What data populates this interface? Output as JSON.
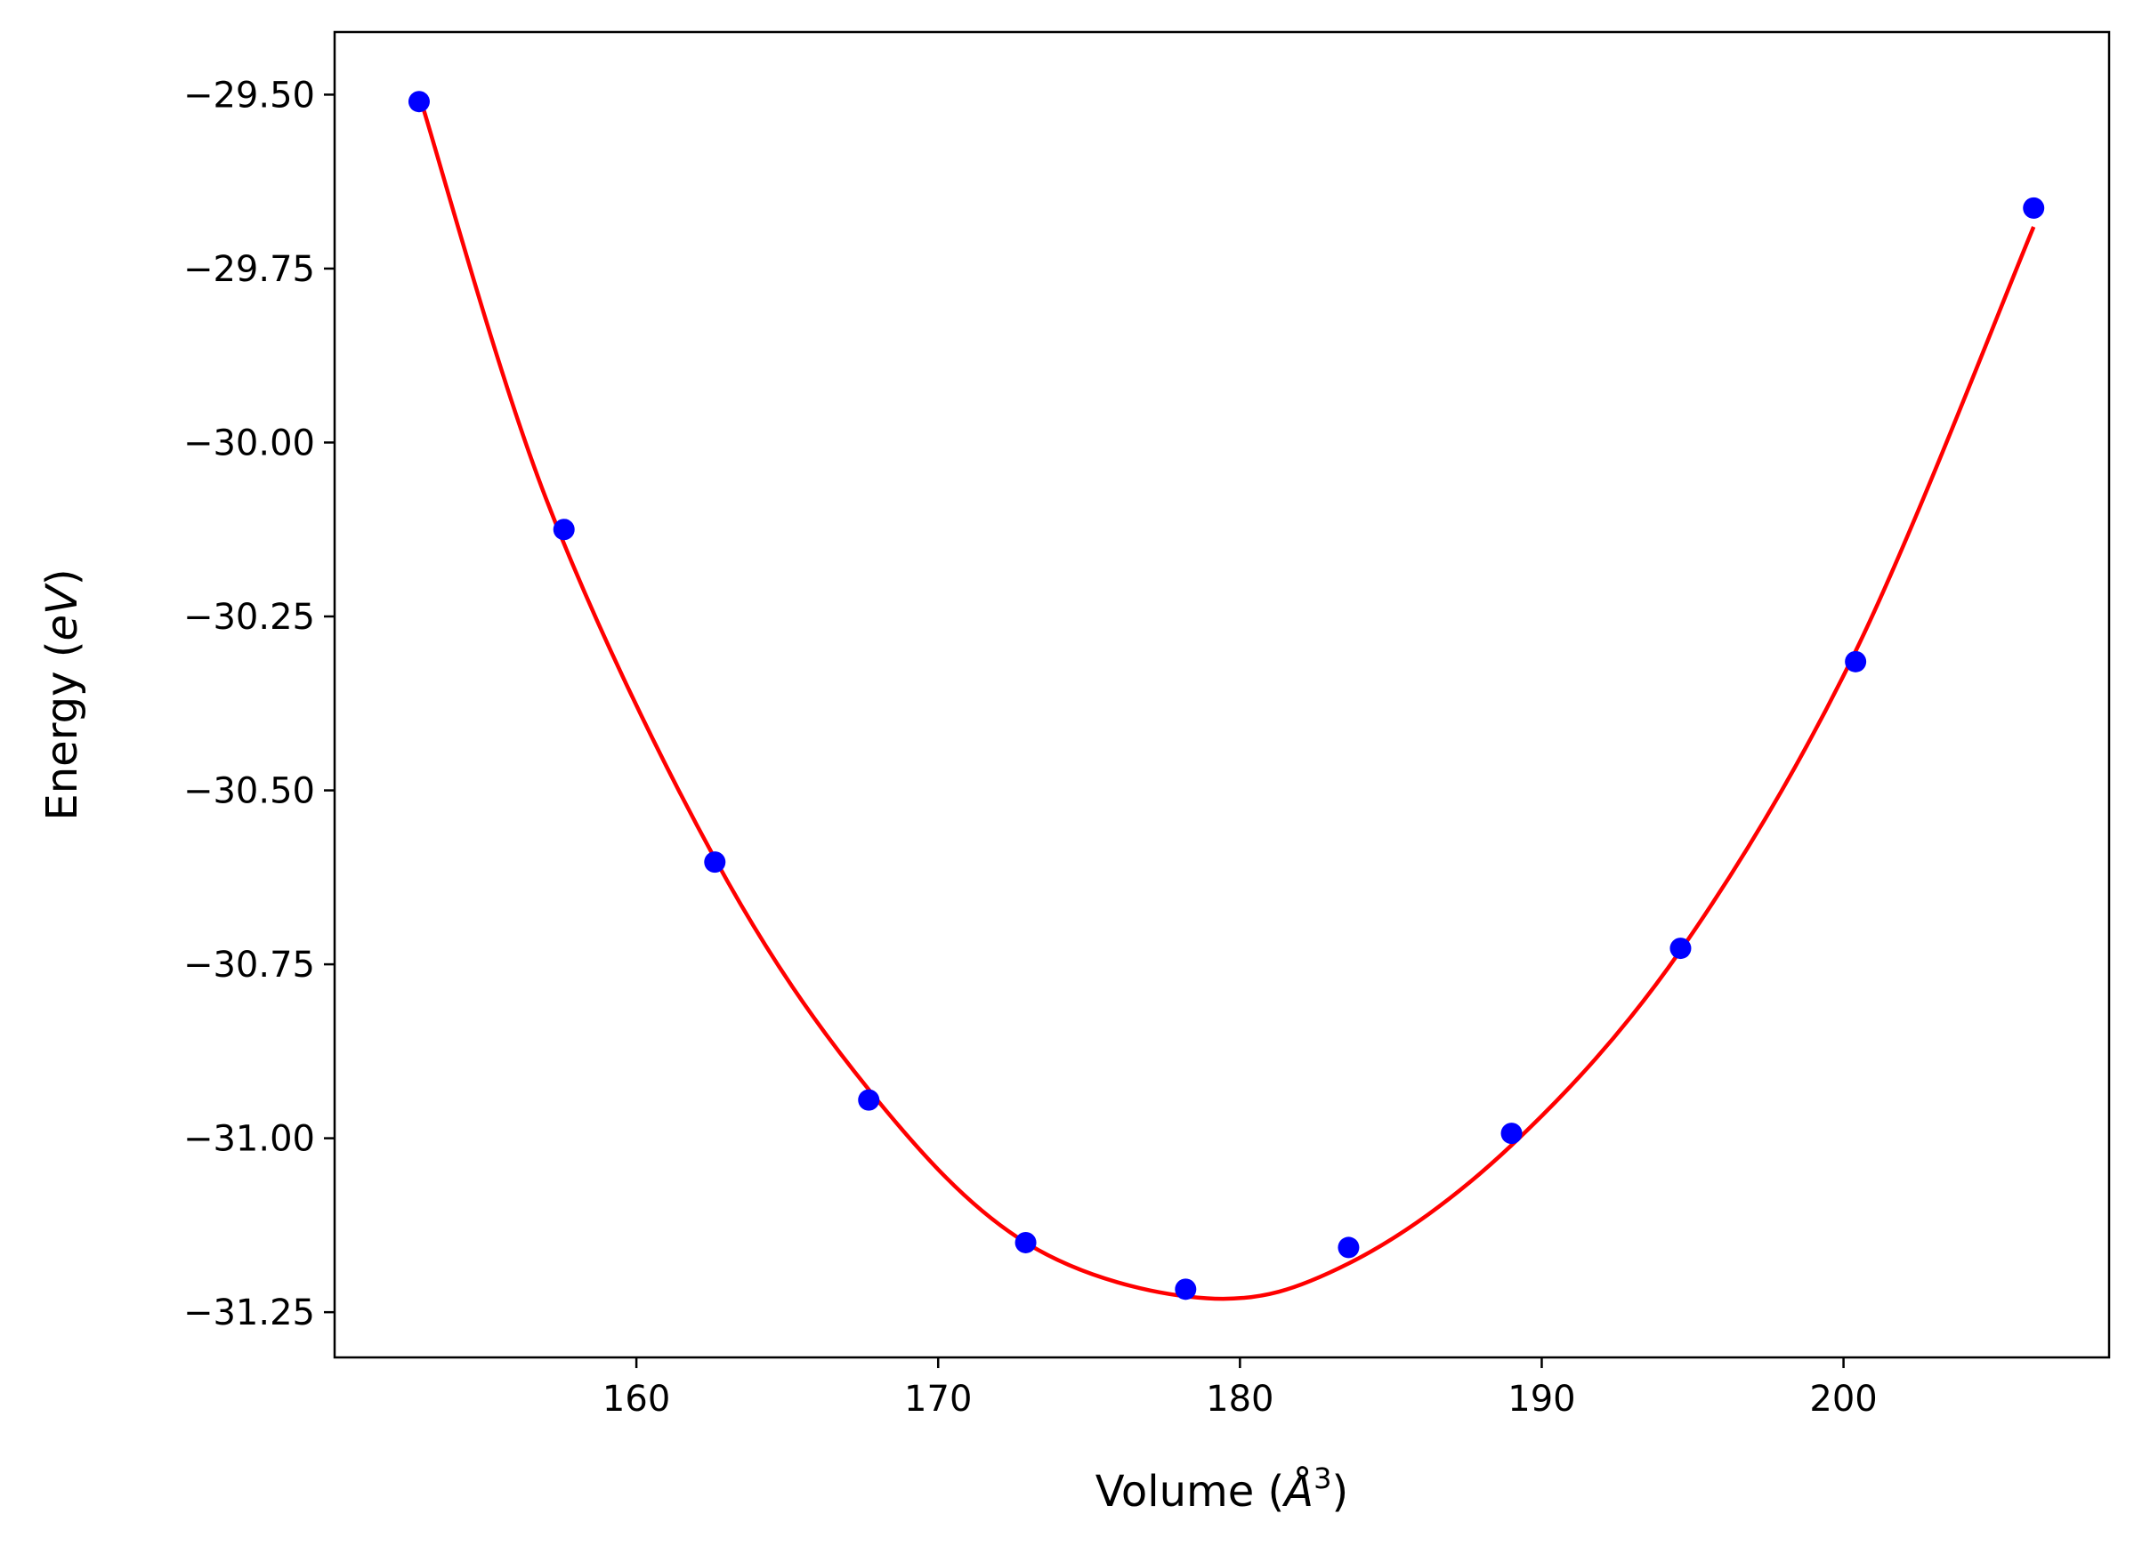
{
  "chart_data": {
    "type": "scatter",
    "title": "",
    "xlabel": "Volume (",
    "xlabel_symbol": "Å",
    "xlabel_exponent": "3",
    "xlabel_close": ")",
    "ylabel": "Energy (",
    "ylabel_unit": "eV",
    "ylabel_close": ")",
    "xlim": [
      150.0,
      208.8
    ],
    "ylim": [
      -31.315,
      -29.41
    ],
    "x_ticks": [
      160,
      170,
      180,
      190,
      200
    ],
    "x_tick_labels": [
      "160",
      "170",
      "180",
      "190",
      "200"
    ],
    "y_ticks": [
      -29.5,
      -29.75,
      -30.0,
      -30.25,
      -30.5,
      -30.75,
      -31.0,
      -31.25
    ],
    "y_tick_labels": [
      "−29.50",
      "−29.75",
      "−30.00",
      "−30.25",
      "−30.50",
      "−30.75",
      "−31.00",
      "−31.25"
    ],
    "grid": false,
    "colors": {
      "points": "#0000ff",
      "fit": "#ff0000"
    },
    "series": [
      {
        "name": "data",
        "kind": "scatter",
        "x": [
          152.8,
          157.6,
          162.6,
          167.7,
          172.9,
          178.2,
          183.6,
          189.0,
          194.6,
          200.4,
          206.3
        ],
        "y": [
          -29.51,
          -30.125,
          -30.603,
          -30.945,
          -31.15,
          -31.217,
          -31.157,
          -30.993,
          -30.727,
          -30.315,
          -29.663
        ]
      },
      {
        "name": "fit",
        "kind": "line",
        "x": [
          152.8,
          157.0,
          162.6,
          167.7,
          172.9,
          178.9,
          183.6,
          189.0,
          194.6,
          200.4,
          206.3
        ],
        "y": [
          -29.5,
          -30.08,
          -30.598,
          -30.93,
          -31.15,
          -31.23,
          -31.18,
          -31.01,
          -30.73,
          -30.3,
          -29.69
        ]
      }
    ]
  }
}
